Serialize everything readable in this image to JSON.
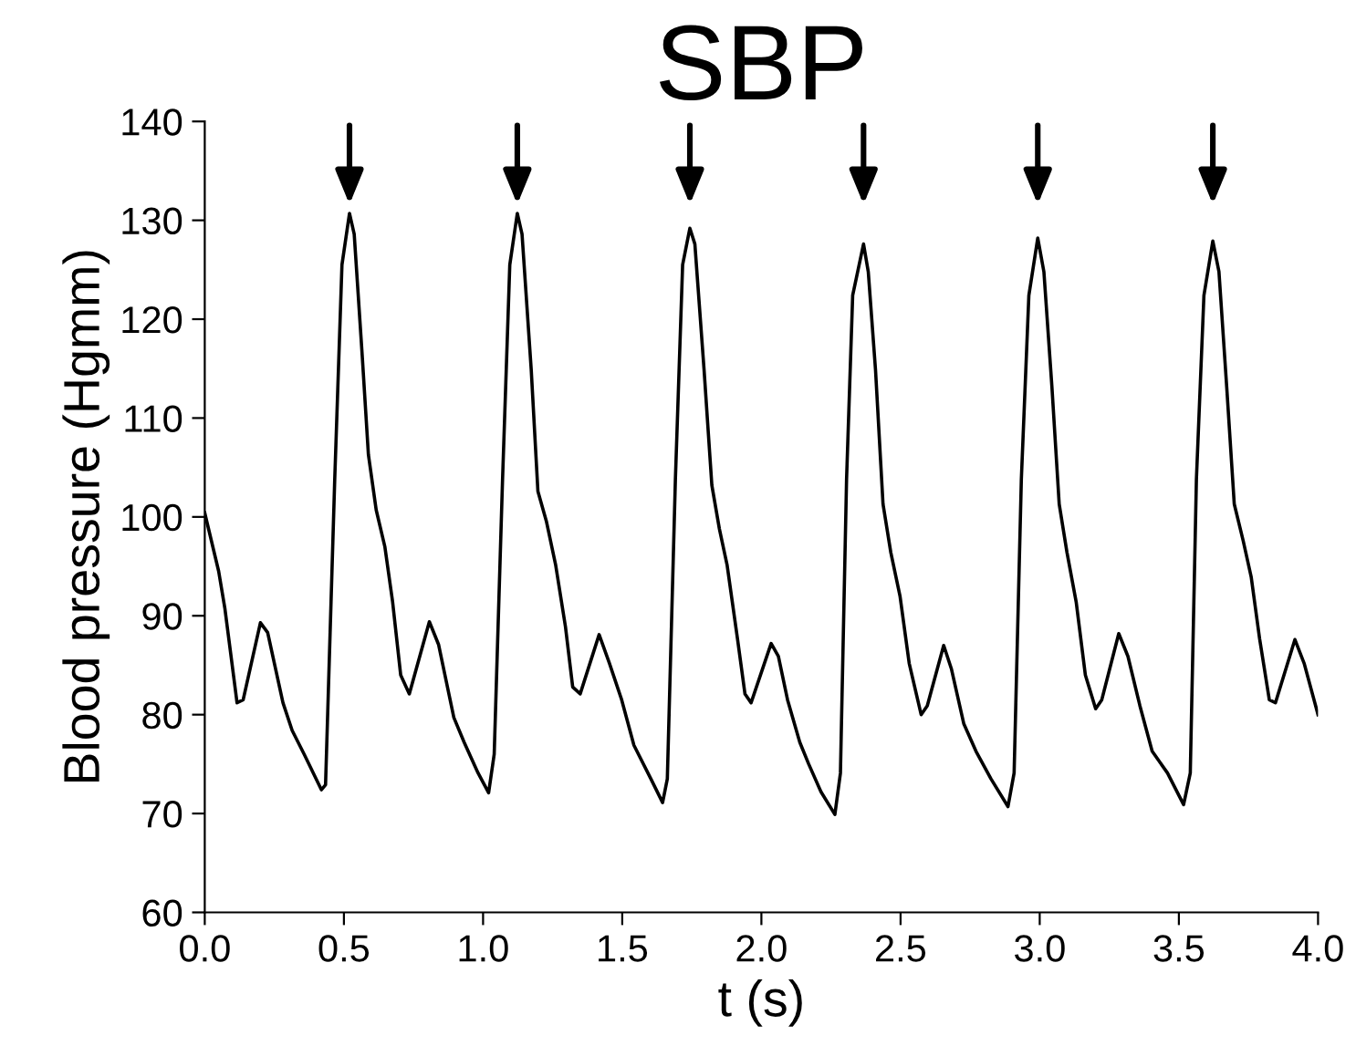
{
  "chart_data": {
    "type": "line",
    "title": "SBP",
    "xlabel": "t (s)",
    "ylabel": "Blood pressure (Hgmm)",
    "xlim": [
      0,
      4
    ],
    "ylim": [
      60,
      140
    ],
    "xticks": [
      {
        "value": 0,
        "label": "0.0"
      },
      {
        "value": 0.5,
        "label": "0.5"
      },
      {
        "value": 1,
        "label": "1.0"
      },
      {
        "value": 1.5,
        "label": "1.5"
      },
      {
        "value": 2,
        "label": "2.0"
      },
      {
        "value": 2.5,
        "label": "2.5"
      },
      {
        "value": 3,
        "label": "3.0"
      },
      {
        "value": 3.5,
        "label": "3.5"
      },
      {
        "value": 4,
        "label": "4.0"
      }
    ],
    "yticks": [
      60,
      70,
      80,
      90,
      100,
      110,
      120,
      130,
      140
    ],
    "grid": false,
    "legend": false,
    "marker": "none",
    "line_style": "solid",
    "series": [
      {
        "color": "#000000",
        "x": [
          0,
          0.05,
          0.072,
          0.116,
          0.138,
          0.2,
          0.226,
          0.281,
          0.314,
          0.357,
          0.419,
          0.434,
          0.467,
          0.493,
          0.52,
          0.537,
          0.566,
          0.588,
          0.616,
          0.647,
          0.675,
          0.704,
          0.735,
          0.807,
          0.84,
          0.895,
          0.932,
          0.982,
          1.02,
          1.04,
          1.07,
          1.096,
          1.123,
          1.14,
          1.173,
          1.197,
          1.228,
          1.261,
          1.296,
          1.322,
          1.349,
          1.417,
          1.454,
          1.498,
          1.542,
          1.603,
          1.645,
          1.662,
          1.691,
          1.717,
          1.743,
          1.761,
          1.794,
          1.822,
          1.849,
          1.877,
          1.914,
          1.941,
          1.963,
          2.035,
          2.061,
          2.094,
          2.138,
          2.17,
          2.214,
          2.264,
          2.284,
          2.306,
          2.328,
          2.367,
          2.384,
          2.41,
          2.437,
          2.465,
          2.498,
          2.531,
          2.574,
          2.596,
          2.655,
          2.683,
          2.727,
          2.771,
          2.825,
          2.886,
          2.908,
          2.934,
          2.961,
          2.993,
          3.015,
          3.044,
          3.07,
          3.098,
          3.131,
          3.164,
          3.201,
          3.223,
          3.284,
          3.317,
          3.36,
          3.404,
          3.459,
          3.517,
          3.541,
          3.563,
          3.59,
          3.622,
          3.644,
          3.672,
          3.699,
          3.731,
          3.76,
          3.79,
          3.825,
          3.847,
          3.917,
          3.95,
          4.0
        ],
        "values": [
          100.4,
          94.5,
          90.8,
          81.2,
          81.5,
          89.3,
          88.3,
          81.2,
          78.4,
          76.0,
          72.4,
          72.9,
          103.8,
          125.5,
          130.7,
          128.6,
          116.2,
          106.3,
          100.7,
          97.0,
          91.4,
          84.0,
          82.1,
          89.4,
          87.1,
          79.7,
          77.2,
          74.1,
          72.1,
          76.0,
          103.8,
          125.5,
          130.7,
          128.6,
          114.9,
          102.6,
          99.5,
          95.1,
          88.9,
          82.8,
          82.1,
          88.1,
          85.2,
          81.5,
          76.9,
          73.5,
          71.1,
          73.5,
          103.8,
          125.5,
          129.2,
          127.6,
          114.9,
          103.2,
          98.8,
          95.1,
          87.7,
          82.1,
          81.2,
          87.2,
          85.9,
          81.5,
          77.2,
          75.0,
          72.2,
          69.9,
          74.1,
          103.8,
          122.4,
          127.6,
          124.8,
          114.9,
          101.3,
          96.4,
          92.0,
          85.2,
          80.0,
          80.9,
          87.0,
          84.6,
          79.1,
          76.3,
          73.5,
          70.7,
          74.1,
          103.8,
          122.4,
          128.2,
          124.8,
          113.1,
          101.3,
          96.4,
          91.4,
          84.0,
          80.6,
          81.5,
          88.2,
          85.9,
          80.9,
          76.3,
          74.1,
          70.9,
          74.1,
          103.8,
          122.4,
          127.9,
          124.8,
          113.1,
          101.3,
          97.6,
          93.9,
          87.7,
          81.5,
          81.2,
          87.6,
          85.2,
          80.0
        ]
      }
    ]
  }
}
